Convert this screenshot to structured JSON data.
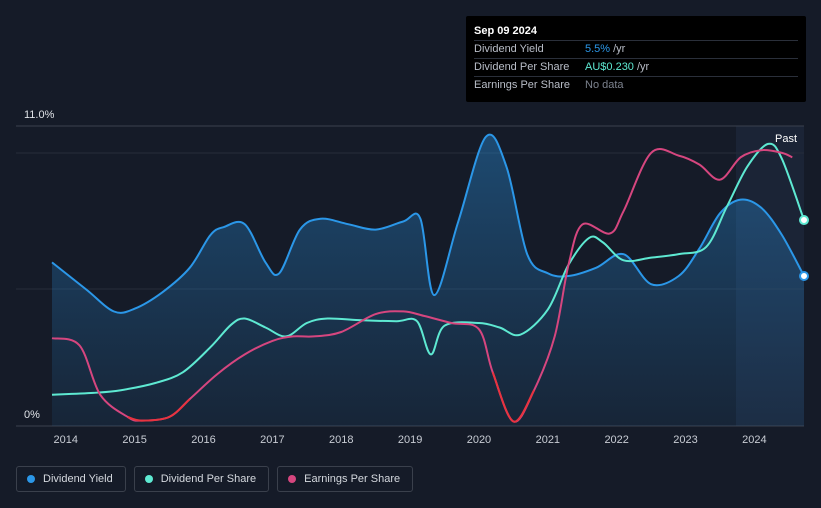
{
  "tooltip": {
    "date": "Sep 09 2024",
    "rows": [
      {
        "label": "Dividend Yield",
        "value": "5.5%",
        "unit": "/yr"
      },
      {
        "label": "Dividend Per Share",
        "value": "AU$0.230",
        "unit": "/yr"
      },
      {
        "label": "Earnings Per Share",
        "value": "No data",
        "unit": ""
      }
    ]
  },
  "colors": {
    "background": "#151b28",
    "dividend_yield": "#2b97e8",
    "dividend_per_share": "#5ee9d2",
    "earnings_per_share": "#d6467f",
    "eps_negative": "#e8333f"
  },
  "legend": [
    {
      "label": "Dividend Yield",
      "color": "#2b97e8"
    },
    {
      "label": "Dividend Per Share",
      "color": "#5ee9d2"
    },
    {
      "label": "Earnings Per Share",
      "color": "#d6467f"
    }
  ],
  "chart_data": {
    "type": "line",
    "title": "",
    "y_axis_labels": {
      "top": "11.0%",
      "bottom": "0%"
    },
    "ylim": [
      0,
      11.0
    ],
    "xlim": [
      2013.8,
      2024.72
    ],
    "x_tick_labels": [
      "2014",
      "2015",
      "2016",
      "2017",
      "2018",
      "2019",
      "2020",
      "2021",
      "2022",
      "2023",
      "2024"
    ],
    "past_label": "Past",
    "grid": true,
    "legend_position": "bottom-left",
    "series": [
      {
        "name": "Dividend Yield",
        "unit": "%",
        "x": [
          2013.8,
          2014.3,
          2014.7,
          2015.0,
          2015.4,
          2015.8,
          2016.1,
          2016.3,
          2016.6,
          2016.9,
          2017.1,
          2017.4,
          2017.7,
          2018.1,
          2018.5,
          2018.9,
          2019.15,
          2019.35,
          2019.7,
          2020.1,
          2020.4,
          2020.7,
          2021.0,
          2021.3,
          2021.7,
          2022.1,
          2022.5,
          2022.9,
          2023.2,
          2023.5,
          2023.8,
          2024.1,
          2024.4,
          2024.72
        ],
        "values": [
          6.0,
          5.0,
          4.2,
          4.3,
          4.9,
          5.8,
          7.0,
          7.3,
          7.4,
          6.0,
          5.6,
          7.2,
          7.6,
          7.4,
          7.2,
          7.5,
          7.6,
          4.8,
          7.5,
          10.6,
          9.5,
          6.3,
          5.6,
          5.5,
          5.8,
          6.3,
          5.2,
          5.5,
          6.5,
          7.8,
          8.3,
          8.0,
          7.0,
          5.5
        ]
      },
      {
        "name": "Dividend Per Share",
        "unit": "AU$",
        "x": [
          2013.8,
          2014.4,
          2014.8,
          2015.3,
          2015.7,
          2016.1,
          2016.4,
          2016.6,
          2016.9,
          2017.2,
          2017.5,
          2017.8,
          2018.3,
          2018.8,
          2019.1,
          2019.3,
          2019.5,
          2020.0,
          2020.3,
          2020.6,
          2021.0,
          2021.3,
          2021.6,
          2021.8,
          2022.1,
          2022.5,
          2022.9,
          2023.3,
          2023.6,
          2023.9,
          2024.2,
          2024.4,
          2024.72
        ],
        "values": [
          0.035,
          0.037,
          0.04,
          0.048,
          0.06,
          0.088,
          0.113,
          0.12,
          0.11,
          0.1,
          0.115,
          0.12,
          0.118,
          0.117,
          0.117,
          0.08,
          0.112,
          0.115,
          0.11,
          0.102,
          0.13,
          0.18,
          0.21,
          0.205,
          0.185,
          0.188,
          0.192,
          0.2,
          0.245,
          0.29,
          0.315,
          0.298,
          0.23
        ]
      },
      {
        "name": "Earnings Per Share",
        "unit": "AU$",
        "x": [
          2013.8,
          2014.2,
          2014.5,
          2014.9,
          2015.1,
          2015.5,
          2015.8,
          2016.2,
          2016.6,
          2017.0,
          2017.3,
          2017.6,
          2018.0,
          2018.5,
          2018.9,
          2019.2,
          2019.6,
          2020.0,
          2020.2,
          2020.5,
          2020.8,
          2021.1,
          2021.3,
          2021.5,
          2021.9,
          2022.1,
          2022.5,
          2022.9,
          2023.2,
          2023.5,
          2023.8,
          2024.1,
          2024.4,
          2024.55
        ],
        "values": [
          0.098,
          0.09,
          0.035,
          0.01,
          0.006,
          0.01,
          0.03,
          0.058,
          0.08,
          0.095,
          0.1,
          0.1,
          0.105,
          0.125,
          0.128,
          0.123,
          0.115,
          0.108,
          0.06,
          0.005,
          0.04,
          0.1,
          0.18,
          0.225,
          0.215,
          0.24,
          0.305,
          0.302,
          0.292,
          0.275,
          0.3,
          0.308,
          0.305,
          0.3
        ]
      }
    ]
  }
}
